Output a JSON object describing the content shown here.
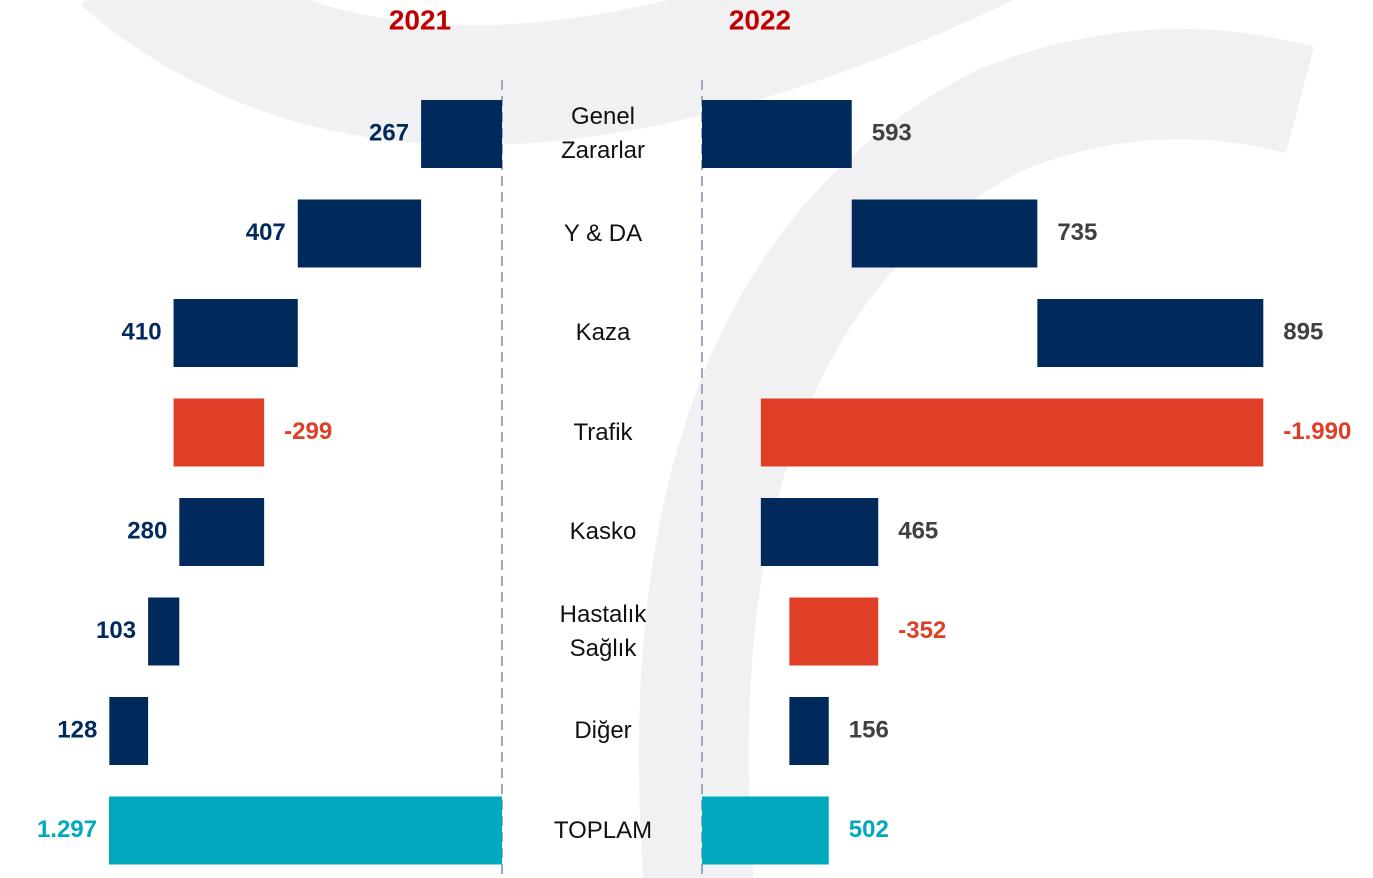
{
  "chart_data": {
    "type": "waterfall",
    "categories": [
      "Genel Zararlar",
      "Y & DA",
      "Kaza",
      "Trafik",
      "Kasko",
      "Hastalık Sağlık",
      "Diğer",
      "TOPLAM"
    ],
    "measure": [
      "relative",
      "relative",
      "relative",
      "relative",
      "relative",
      "relative",
      "relative",
      "total"
    ],
    "colors": {
      "increase": "#002a5c",
      "decrease": "#df3e27",
      "total": "#00a9bd"
    },
    "series": [
      {
        "name": "2021",
        "values": [
          267,
          407,
          410,
          -299,
          280,
          103,
          128,
          1297
        ],
        "value_labels": [
          "267",
          "407",
          "410",
          "-299",
          "280",
          "103",
          "128",
          "1.297"
        ],
        "label_color": "#002a5c"
      },
      {
        "name": "2022",
        "values": [
          593,
          735,
          895,
          -1990,
          465,
          -352,
          156,
          502
        ],
        "value_labels": [
          "593",
          "735",
          "895",
          "-1.990",
          "465",
          "-352",
          "156",
          "502"
        ],
        "label_color": "#404040"
      }
    ],
    "title_color": "#c00000"
  }
}
